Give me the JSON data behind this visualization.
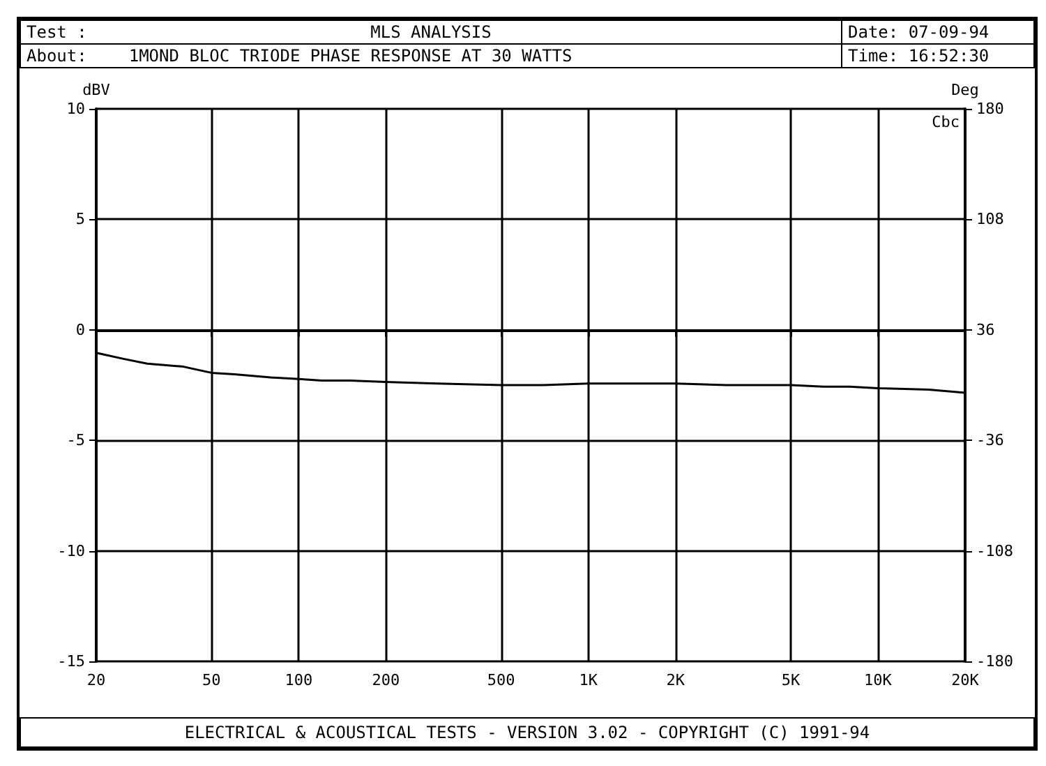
{
  "chart_data": {
    "type": "line",
    "title": "MLS ANALYSIS",
    "subtitle": "1MOND BLOC TRIODE PHASE RESPONSE AT 30 WATTS",
    "annotations": [
      "Test :",
      "About:",
      "Date: 07-09-94",
      "Time: 16:52:30",
      "Cbc",
      "ELECTRICAL & ACOUSTICAL TESTS - VERSION 3.02 - COPYRIGHT (C) 1991-94"
    ],
    "ylabel": "dBV",
    "y2label": "Deg",
    "log": "x",
    "xlim": [
      20,
      20000
    ],
    "xticks": [
      20,
      50,
      100,
      200,
      500,
      {
        "value": 1000,
        "label": "1K"
      },
      {
        "value": 2000,
        "label": "2K"
      },
      {
        "value": 5000,
        "label": "5K"
      },
      {
        "value": 10000,
        "label": "10K"
      },
      {
        "value": 20000,
        "label": "20K"
      }
    ],
    "ylim": [
      -15,
      10
    ],
    "yticks": [
      -15,
      -10,
      -5,
      0,
      5,
      10
    ],
    "y2lim": [
      -180,
      180
    ],
    "y2ticks": [
      -180,
      -108,
      -36,
      36,
      108,
      180
    ],
    "grid": true,
    "marker": "none",
    "line_style": "solid",
    "series": [
      {
        "color": "#000000",
        "axis": "y2",
        "x": [
          20,
          25,
          30,
          40,
          50,
          60,
          80,
          100,
          120,
          150,
          200,
          300,
          500,
          700,
          1000,
          1500,
          2000,
          3000,
          5000,
          6500,
          8000,
          10000,
          15000,
          20000
        ],
        "values": [
          21,
          17,
          14,
          12,
          8,
          7,
          5,
          4,
          3,
          3,
          2,
          1,
          0,
          0,
          1,
          1,
          1,
          0,
          0,
          -1,
          -1,
          -2,
          -3,
          -5
        ]
      }
    ]
  }
}
